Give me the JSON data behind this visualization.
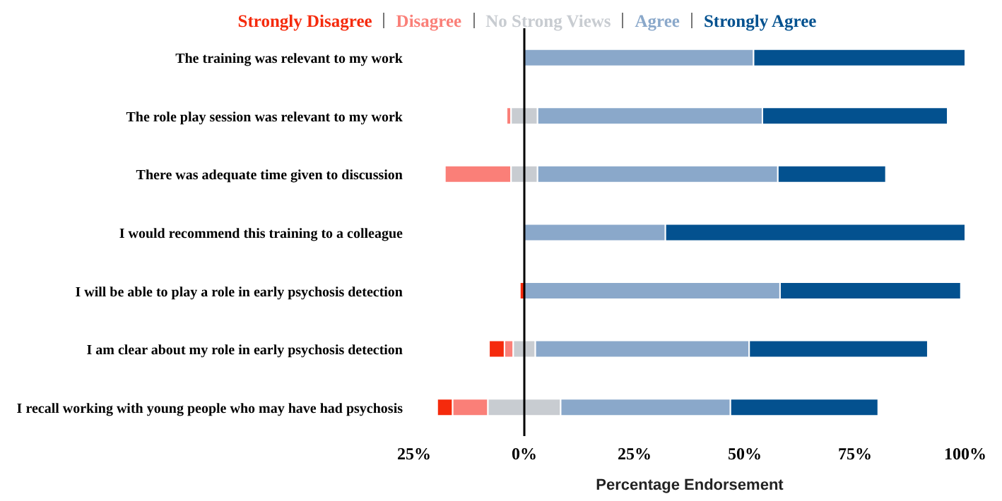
{
  "chart_data": {
    "type": "bar",
    "orientation": "horizontal",
    "xlabel": "Percentage Endorsement",
    "categories": [
      "The training was relevant to my work",
      "The role play session was relevant to my work",
      "There was adequate time given to discussion",
      "I would recommend this training to a colleague",
      "I will be able to play a role in early psychosis detection",
      "I am clear about my role in early psychosis detection",
      "I recall working with young people who may have had psychosis"
    ],
    "series": [
      {
        "name": "Strongly Disagree",
        "color": "#f52a0c",
        "values": [
          null,
          null,
          null,
          null,
          1,
          3.5,
          3.5
        ],
        "base": [
          null,
          null,
          null,
          null,
          -1,
          -8,
          -19.75
        ]
      },
      {
        "name": "Disagree",
        "color": "#fa7f78",
        "values": [
          null,
          1,
          15,
          null,
          null,
          2,
          8
        ],
        "base": [
          null,
          -4,
          -18,
          null,
          null,
          -4.5,
          -16.25
        ]
      },
      {
        "name": "No Strong Views",
        "color": "#c8ccd1",
        "values": [
          null,
          6,
          6,
          null,
          null,
          5,
          16.5
        ],
        "base": [
          null,
          -3,
          -3,
          null,
          null,
          -2.5,
          -8.25
        ]
      },
      {
        "name": "Agree",
        "color": "#8aa8ca",
        "values": [
          52,
          51,
          54.5,
          32,
          58,
          48.5,
          38.5
        ],
        "base": [
          0,
          3,
          3,
          0,
          0,
          2.5,
          8.25
        ]
      },
      {
        "name": "Strongly Agree",
        "color": "#03518f",
        "values": [
          48,
          42,
          24.5,
          68,
          41,
          40.5,
          33.5
        ],
        "base": [
          52,
          54,
          57.5,
          32,
          58,
          51,
          46.75
        ]
      }
    ],
    "xlim": [
      -25,
      100
    ],
    "xticks": [
      {
        "value": -25,
        "label": "25%"
      },
      {
        "value": 0,
        "label": "0%"
      },
      {
        "value": 25,
        "label": "25%"
      },
      {
        "value": 50,
        "label": "50%"
      },
      {
        "value": 75,
        "label": "75%"
      },
      {
        "value": 100,
        "label": "100%"
      }
    ],
    "ref_lines": [
      {
        "axis": "x",
        "value": 0,
        "color": "#000000"
      }
    ],
    "legend": "top"
  }
}
